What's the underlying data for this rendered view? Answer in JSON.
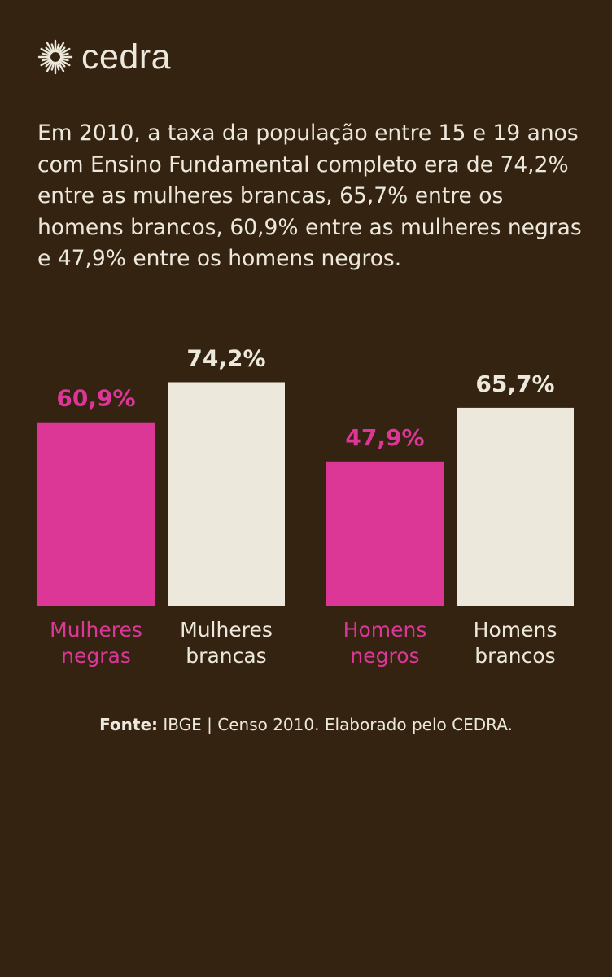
{
  "brand": {
    "name": "cedra"
  },
  "intro_text": "Em 2010, a taxa da população entre 15 e 19 anos com Ensino Fundamental completo era de 74,2% entre as mulheres brancas, 65,7% entre os homens brancos, 60,9% entre as mulheres negras e 47,9% entre os homens negros.",
  "source": {
    "label": "Fonte:",
    "text": "IBGE | Censo 2010. Elaborado pelo CEDRA."
  },
  "colors": {
    "background": "#352312",
    "negro": "#dc3796",
    "branco": "#ece8dc"
  },
  "chart_data": {
    "type": "bar",
    "title": "",
    "xlabel": "",
    "ylabel": "",
    "ylim": [
      0,
      100
    ],
    "grid": false,
    "categories": [
      {
        "line1": "Mulheres",
        "line2": "negras",
        "value": 60.9,
        "value_label": "60,9%",
        "color": "#dc3796"
      },
      {
        "line1": "Mulheres",
        "line2": "brancas",
        "value": 74.2,
        "value_label": "74,2%",
        "color": "#ece8dc"
      },
      {
        "line1": "Homens",
        "line2": "negros",
        "value": 47.9,
        "value_label": "47,9%",
        "color": "#dc3796"
      },
      {
        "line1": "Homens",
        "line2": "brancos",
        "value": 65.7,
        "value_label": "65,7%",
        "color": "#ece8dc"
      }
    ]
  }
}
